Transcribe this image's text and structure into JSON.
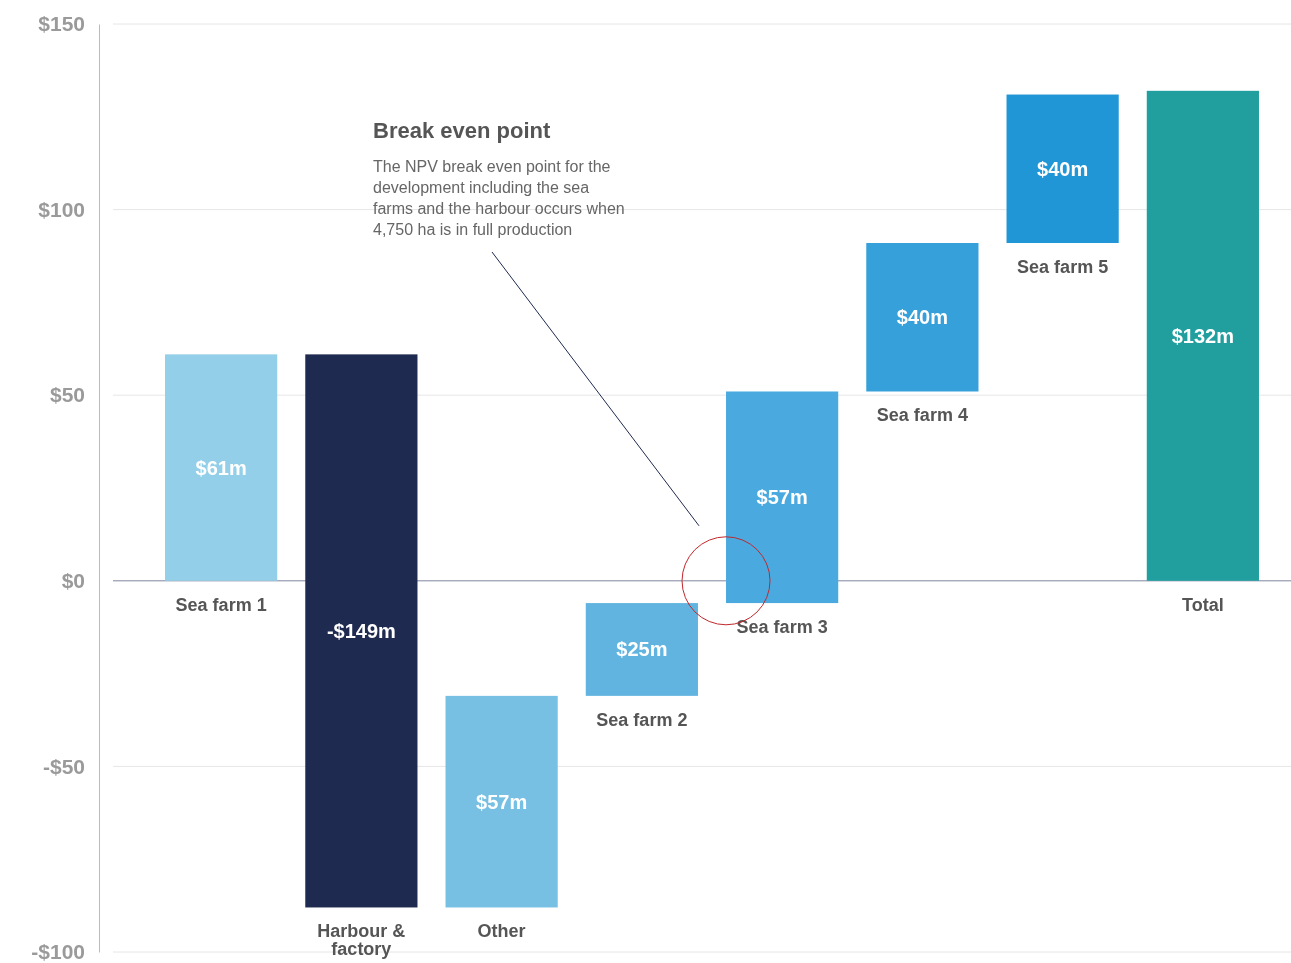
{
  "chart_data": {
    "type": "bar",
    "categories": [
      "Sea farm 1",
      "Harbour & factory",
      "Other",
      "Sea farm 2",
      "Sea farm 3",
      "Sea farm 4",
      "Sea farm 5",
      "Total"
    ],
    "values": [
      61,
      -149,
      57,
      25,
      57,
      40,
      40,
      132
    ],
    "base": [
      0,
      61,
      -88,
      -31,
      -6,
      51,
      91,
      0
    ],
    "colors": [
      "#93cfe8",
      "#1f2a50",
      "#78c0e3",
      "#62b4e0",
      "#4aaadf",
      "#36a0da",
      "#2196d6",
      "#219e9e"
    ],
    "value_labels": [
      "$61m",
      "-$149m",
      "$57m",
      "$25m",
      "$57m",
      "$40m",
      "$40m",
      "$132m"
    ],
    "ylim": [
      -100,
      150
    ],
    "yticks": [
      {
        "value": -100,
        "label": "-$100"
      },
      {
        "value": -50,
        "label": "-$50"
      },
      {
        "value": 0,
        "label": "$0"
      },
      {
        "value": 50,
        "label": "$50"
      },
      {
        "value": 100,
        "label": "$100"
      },
      {
        "value": 150,
        "label": "$150"
      }
    ],
    "grid": "y",
    "annotations": [
      "Break even point",
      "The NPV break even point for the development including the sea farms and the harbour occurs when 4,750 ha is in full production"
    ]
  }
}
